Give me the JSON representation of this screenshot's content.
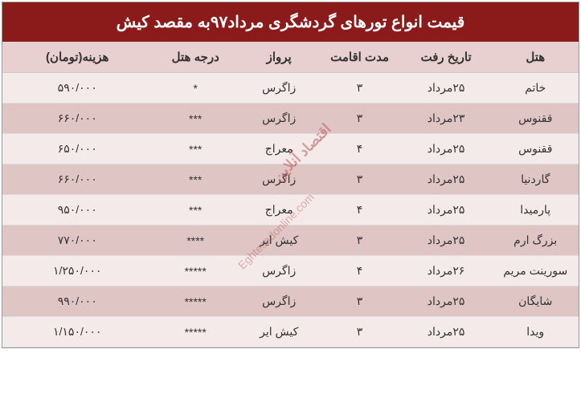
{
  "title": "قیمت انواع تورهای گردشگری مرداد۹۷به مقصد کیش",
  "watermark_text": "اقتصاد آنلاین",
  "watermark_url": "Eghtesadonline.com",
  "headers": {
    "hotel": "هتل",
    "date": "تاریخ رفت",
    "duration": "مدت اقامت",
    "flight": "پرواز",
    "rating": "درجه هتل",
    "price": "هزینه(تومان)"
  },
  "rows": [
    {
      "hotel": "خاتم",
      "date": "۲۵مرداد",
      "duration": "۳",
      "flight": "زاگرس",
      "rating": "*",
      "price": "۵۹۰/۰۰۰"
    },
    {
      "hotel": "ققنوس",
      "date": "۲۳مرداد",
      "duration": "۳",
      "flight": "زاگرس",
      "rating": "***",
      "price": "۶۶۰/۰۰۰"
    },
    {
      "hotel": "ققنوس",
      "date": "۲۵مرداد",
      "duration": "۴",
      "flight": "معراج",
      "rating": "***",
      "price": "۶۵۰/۰۰۰"
    },
    {
      "hotel": "گاردنیا",
      "date": "۲۵مرداد",
      "duration": "۳",
      "flight": "زاگرس",
      "rating": "***",
      "price": "۶۶۰/۰۰۰"
    },
    {
      "hotel": "پارمیدا",
      "date": "۲۵مرداد",
      "duration": "۴",
      "flight": "معراج",
      "rating": "***",
      "price": "۹۵۰/۰۰۰"
    },
    {
      "hotel": "بزرگ ارم",
      "date": "۲۵مرداد",
      "duration": "۳",
      "flight": "کیش ایر",
      "rating": "****",
      "price": "۷۷۰/۰۰۰"
    },
    {
      "hotel": "سورینت مریم",
      "date": "۲۶مرداد",
      "duration": "۴",
      "flight": "زاگرس",
      "rating": "*****",
      "price": "۱/۲۵۰/۰۰۰"
    },
    {
      "hotel": "شایگان",
      "date": "۲۵مرداد",
      "duration": "۳",
      "flight": "زاگرس",
      "rating": "*****",
      "price": "۹۹۰/۰۰۰"
    },
    {
      "hotel": "ویدا",
      "date": "۲۵مرداد",
      "duration": "۳",
      "flight": "کیش ایر",
      "rating": "*****",
      "price": "۱/۱۵۰/۰۰۰"
    }
  ],
  "colors": {
    "title_bg": "#8b1a1a",
    "title_text": "#ffffff",
    "header_bg": "#e8d0d0",
    "row_odd_bg": "#f5eaea",
    "row_even_bg": "#e0c5c5"
  }
}
